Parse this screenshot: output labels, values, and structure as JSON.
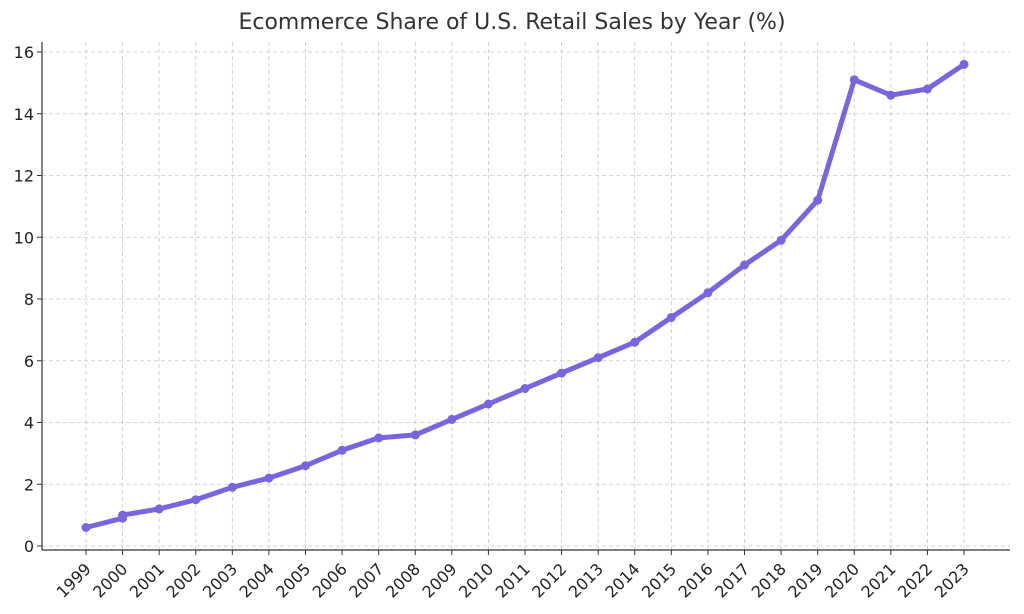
{
  "chart_data": {
    "type": "line",
    "title": "Ecommerce Share of U.S. Retail Sales by Year (%)",
    "xlabel": "",
    "ylabel": "",
    "categories": [
      "1999",
      "2000",
      "2000",
      "2001",
      "2002",
      "2003",
      "2004",
      "2005",
      "2006",
      "2007",
      "2008",
      "2009",
      "2010",
      "2011",
      "2012",
      "2013",
      "2014",
      "2015",
      "2016",
      "2017",
      "2018",
      "2019",
      "2020",
      "2021",
      "2022",
      "2023"
    ],
    "x": [
      1999,
      2000,
      2000,
      2001,
      2002,
      2003,
      2004,
      2005,
      2006,
      2007,
      2008,
      2009,
      2010,
      2011,
      2012,
      2013,
      2014,
      2015,
      2016,
      2017,
      2018,
      2019,
      2020,
      2021,
      2022,
      2023
    ],
    "series": [
      {
        "values": [
          0.6,
          0.9,
          1.0,
          1.2,
          1.5,
          1.9,
          2.2,
          2.6,
          3.1,
          3.5,
          3.6,
          4.1,
          4.6,
          5.1,
          5.6,
          6.1,
          6.6,
          7.4,
          8.2,
          9.1,
          9.9,
          11.2,
          15.1,
          14.6,
          14.8,
          15.6
        ]
      }
    ],
    "xticks": [
      "1999",
      "2000",
      "2001",
      "2002",
      "2003",
      "2004",
      "2005",
      "2006",
      "2007",
      "2008",
      "2009",
      "2010",
      "2011",
      "2012",
      "2013",
      "2014",
      "2015",
      "2016",
      "2017",
      "2018",
      "2019",
      "2020",
      "2021",
      "2022",
      "2023"
    ],
    "yticks": [
      0,
      2,
      4,
      6,
      8,
      10,
      12,
      14,
      16
    ],
    "ylim": [
      0,
      16.5
    ],
    "xlim": [
      1999,
      2023
    ],
    "grid": true,
    "line_color": "#7766dd"
  }
}
